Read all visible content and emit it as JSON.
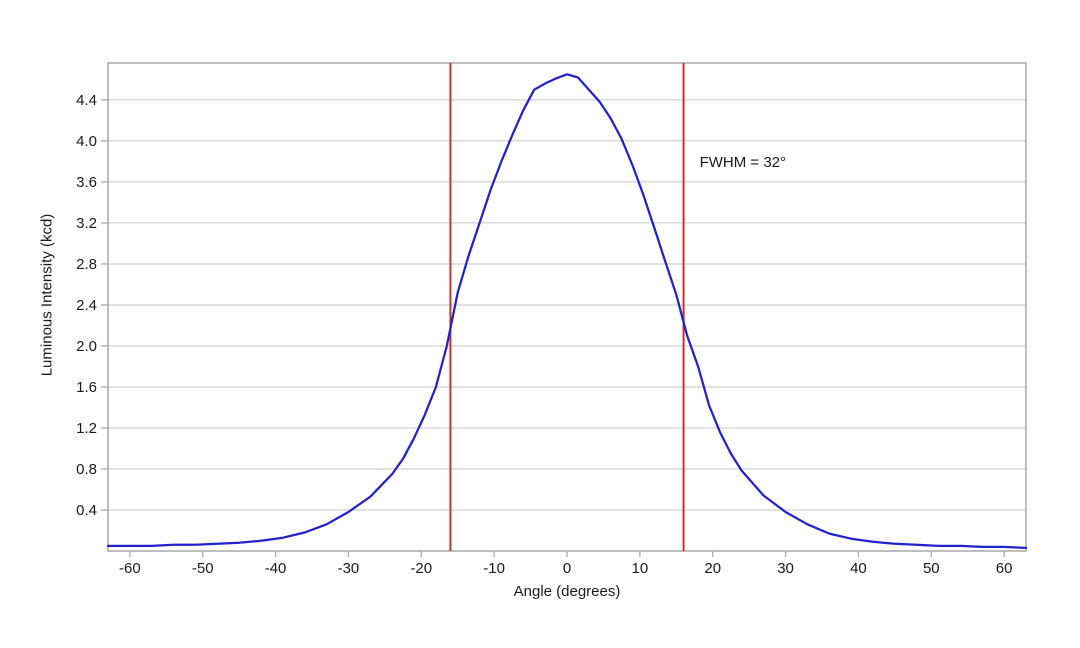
{
  "figure": {
    "background": "#ffffff"
  },
  "chart_data": {
    "type": "line",
    "title": "",
    "xlabel": "Angle (degrees)",
    "ylabel": "Luminous Intensity (kcd)",
    "xlim": [
      -63,
      63
    ],
    "ylim": [
      0,
      4.76
    ],
    "grid": "horizontal",
    "x_ticks": [
      -60,
      -50,
      -40,
      -30,
      -20,
      -10,
      0,
      10,
      20,
      30,
      40,
      50,
      60
    ],
    "x_tick_labels": [
      "-60",
      "-50",
      "-40",
      "-30",
      "-20",
      "-10",
      "0",
      "10",
      "20",
      "30",
      "40",
      "50",
      "60"
    ],
    "y_ticks": [
      0.4,
      0.8,
      1.2,
      1.6,
      2.0,
      2.4,
      2.8,
      3.2,
      3.6,
      4.0,
      4.4
    ],
    "y_tick_labels": [
      "0.4",
      "0.8",
      "1.2",
      "1.6",
      "2.0",
      "2.4",
      "2.8",
      "3.2",
      "3.6",
      "4.0",
      "4.4"
    ],
    "colors": {
      "curve": "#2222cc",
      "fwhm_line": "#cc3129",
      "gridline": "#c6c6c6",
      "border": "#a8a8a8",
      "text": "#1a1a1a"
    },
    "annotation": {
      "text": "FWHM = 32°",
      "x_deg": 18.2,
      "y_kcd": 3.87
    },
    "fwhm_markers": {
      "x_deg": [
        -16,
        16
      ],
      "label": "FWHM = 32°"
    },
    "series": [
      {
        "name": "luminous-intensity-vs-angle",
        "color": "#2222cc",
        "points": [
          [
            -63,
            0.05
          ],
          [
            -60,
            0.05
          ],
          [
            -57,
            0.05
          ],
          [
            -54,
            0.06
          ],
          [
            -51,
            0.06
          ],
          [
            -48,
            0.07
          ],
          [
            -45,
            0.08
          ],
          [
            -42,
            0.1
          ],
          [
            -39,
            0.13
          ],
          [
            -36,
            0.18
          ],
          [
            -33,
            0.26
          ],
          [
            -30,
            0.38
          ],
          [
            -27,
            0.53
          ],
          [
            -24,
            0.75
          ],
          [
            -22.5,
            0.9
          ],
          [
            -21,
            1.1
          ],
          [
            -19.5,
            1.33
          ],
          [
            -18,
            1.6
          ],
          [
            -16.5,
            2.0
          ],
          [
            -15,
            2.52
          ],
          [
            -13.5,
            2.88
          ],
          [
            -12,
            3.2
          ],
          [
            -10.5,
            3.52
          ],
          [
            -9,
            3.8
          ],
          [
            -7.5,
            4.06
          ],
          [
            -6,
            4.3
          ],
          [
            -4.5,
            4.5
          ],
          [
            -3,
            4.56
          ],
          [
            -1.5,
            4.61
          ],
          [
            0,
            4.65
          ],
          [
            1.5,
            4.62
          ],
          [
            3,
            4.5
          ],
          [
            4.5,
            4.38
          ],
          [
            6,
            4.22
          ],
          [
            7.5,
            4.02
          ],
          [
            9,
            3.76
          ],
          [
            10.5,
            3.47
          ],
          [
            12,
            3.15
          ],
          [
            13.5,
            2.82
          ],
          [
            15,
            2.5
          ],
          [
            16.5,
            2.1
          ],
          [
            18,
            1.8
          ],
          [
            19.5,
            1.42
          ],
          [
            21,
            1.16
          ],
          [
            22.5,
            0.95
          ],
          [
            24,
            0.78
          ],
          [
            27,
            0.54
          ],
          [
            30,
            0.38
          ],
          [
            33,
            0.26
          ],
          [
            36,
            0.17
          ],
          [
            39,
            0.12
          ],
          [
            42,
            0.09
          ],
          [
            45,
            0.07
          ],
          [
            48,
            0.06
          ],
          [
            51,
            0.05
          ],
          [
            54,
            0.05
          ],
          [
            57,
            0.04
          ],
          [
            60,
            0.04
          ],
          [
            63,
            0.03
          ]
        ]
      }
    ]
  }
}
